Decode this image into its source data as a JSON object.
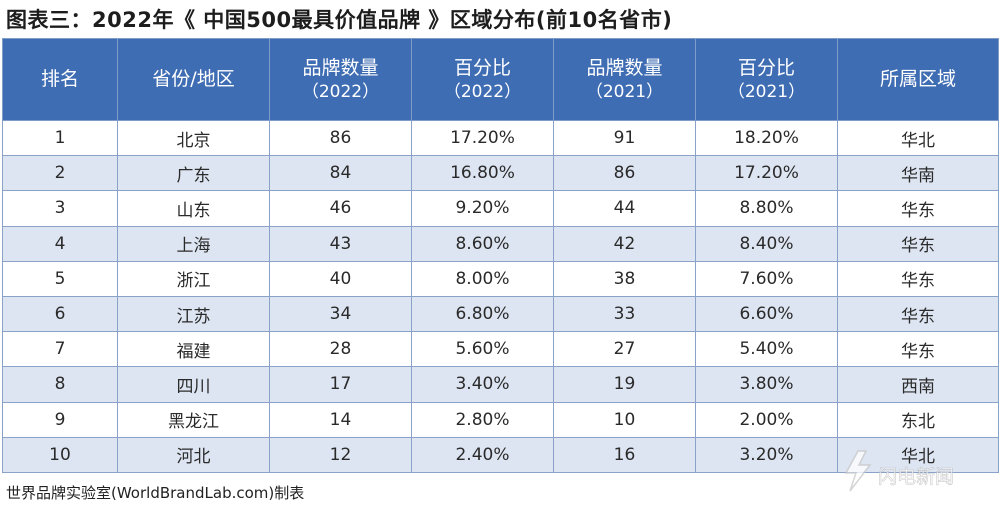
{
  "title": "图表三：2022年《 中国500最具价值品牌 》区域分布(前10名省市)",
  "headers": [
    {
      "main": "排名",
      "sub": ""
    },
    {
      "main": "省份/地区",
      "sub": ""
    },
    {
      "main": "品牌数量",
      "sub": "（2022）"
    },
    {
      "main": "百分比",
      "sub": "（2022）"
    },
    {
      "main": "品牌数量",
      "sub": "（2021）"
    },
    {
      "main": "百分比",
      "sub": "（2021）"
    },
    {
      "main": "所属区域",
      "sub": ""
    }
  ],
  "rows": [
    [
      "1",
      "北京",
      "86",
      "17.20%",
      "91",
      "18.20%",
      "华北"
    ],
    [
      "2",
      "广东",
      "84",
      "16.80%",
      "86",
      "17.20%",
      "华南"
    ],
    [
      "3",
      "山东",
      "46",
      "9.20%",
      "44",
      "8.80%",
      "华东"
    ],
    [
      "4",
      "上海",
      "43",
      "8.60%",
      "42",
      "8.40%",
      "华东"
    ],
    [
      "5",
      "浙江",
      "40",
      "8.00%",
      "38",
      "7.60%",
      "华东"
    ],
    [
      "6",
      "江苏",
      "34",
      "6.80%",
      "33",
      "6.60%",
      "华东"
    ],
    [
      "7",
      "福建",
      "28",
      "5.60%",
      "27",
      "5.40%",
      "华东"
    ],
    [
      "8",
      "四川",
      "17",
      "3.40%",
      "19",
      "3.80%",
      "西南"
    ],
    [
      "9",
      "黑龙江",
      "14",
      "2.80%",
      "10",
      "2.00%",
      "东北"
    ],
    [
      "10",
      "河北",
      "12",
      "2.40%",
      "16",
      "3.20%",
      "华北"
    ]
  ],
  "footer": "世界品牌实验室(WorldBrandLab.com)制表",
  "watermark": {
    "icon": "news-logo-icon",
    "text": "闪电新闻"
  },
  "colors": {
    "header_bg": "#3f6db3",
    "stripe": "#dde5f2",
    "border": "#8aa2c8"
  }
}
